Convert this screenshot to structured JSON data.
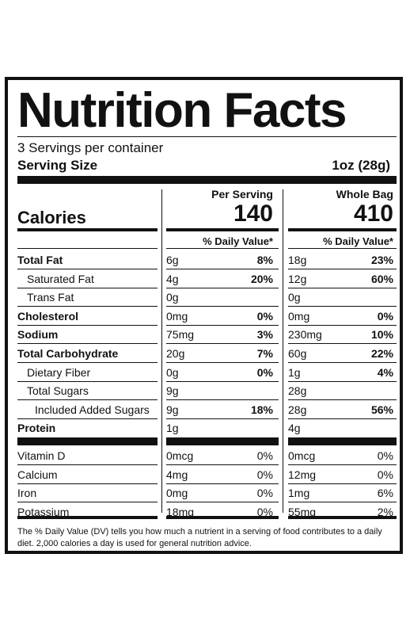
{
  "title": "Nutrition Facts",
  "servings_per_container": "3 Servings per container",
  "serving_size": {
    "label": "Serving Size",
    "value": "1oz (28g)"
  },
  "calories": {
    "label": "Calories",
    "col1_header": "Per Serving",
    "col1_value": "140",
    "col2_header": "Whole Bag",
    "col2_value": "410"
  },
  "dv_header": "% Daily Value*",
  "nutrients": [
    {
      "name": "Total Fat",
      "bold": true,
      "indent": 0,
      "s_amt": "6g",
      "s_dv": "8%",
      "b_amt": "18g",
      "b_dv": "23%"
    },
    {
      "name": "Saturated Fat",
      "bold": false,
      "indent": 1,
      "s_amt": "4g",
      "s_dv": "20%",
      "b_amt": "12g",
      "b_dv": "60%"
    },
    {
      "name": "Trans Fat",
      "bold": false,
      "indent": 1,
      "s_amt": "0g",
      "s_dv": "",
      "b_amt": "0g",
      "b_dv": ""
    },
    {
      "name": "Cholesterol",
      "bold": true,
      "indent": 0,
      "s_amt": "0mg",
      "s_dv": "0%",
      "b_amt": "0mg",
      "b_dv": "0%"
    },
    {
      "name": "Sodium",
      "bold": true,
      "indent": 0,
      "s_amt": "75mg",
      "s_dv": "3%",
      "b_amt": "230mg",
      "b_dv": "10%"
    },
    {
      "name": "Total Carbohydrate",
      "bold": true,
      "indent": 0,
      "s_amt": "20g",
      "s_dv": "7%",
      "b_amt": "60g",
      "b_dv": "22%"
    },
    {
      "name": "Dietary Fiber",
      "bold": false,
      "indent": 1,
      "s_amt": "0g",
      "s_dv": "0%",
      "b_amt": "1g",
      "b_dv": "4%"
    },
    {
      "name": "Total Sugars",
      "bold": false,
      "indent": 1,
      "s_amt": "9g",
      "s_dv": "",
      "b_amt": "28g",
      "b_dv": ""
    },
    {
      "name": "Included Added Sugars",
      "bold": false,
      "indent": 2,
      "s_amt": "9g",
      "s_dv": "18%",
      "b_amt": "28g",
      "b_dv": "56%"
    },
    {
      "name": "Protein",
      "bold": true,
      "indent": 0,
      "s_amt": "1g",
      "s_dv": "",
      "b_amt": "4g",
      "b_dv": ""
    }
  ],
  "vitamins": [
    {
      "name": "Vitamin D",
      "s_amt": "0mcg",
      "s_dv": "0%",
      "b_amt": "0mcg",
      "b_dv": "0%"
    },
    {
      "name": "Calcium",
      "s_amt": "4mg",
      "s_dv": "0%",
      "b_amt": "12mg",
      "b_dv": "0%"
    },
    {
      "name": "Iron",
      "s_amt": "0mg",
      "s_dv": "0%",
      "b_amt": "1mg",
      "b_dv": "6%"
    },
    {
      "name": "Potassium",
      "s_amt": "18mg",
      "s_dv": "0%",
      "b_amt": "55mg",
      "b_dv": "2%"
    }
  ],
  "footnote": "The % Daily Value (DV) tells you how much a nutrient in a serving of food contributes to a daily diet. 2,000 calories a day is used for general nutrition advice."
}
